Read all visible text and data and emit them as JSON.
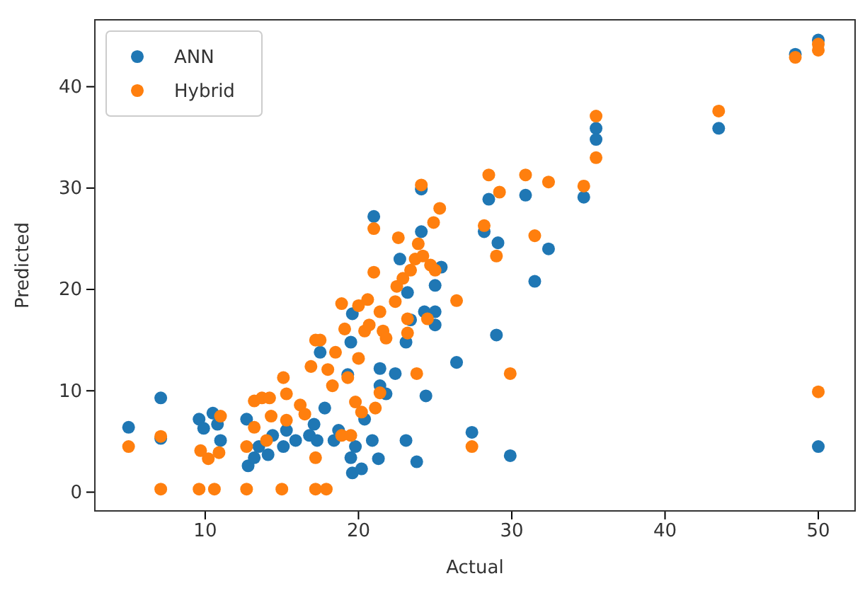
{
  "chart_data": {
    "type": "scatter",
    "xlabel": "Actual",
    "ylabel": "Predicted",
    "xlim": [
      2.8,
      52.4
    ],
    "ylim": [
      -1.85,
      46.6
    ],
    "xticks": [
      10,
      20,
      30,
      40,
      50
    ],
    "yticks": [
      0,
      10,
      20,
      30,
      40
    ],
    "grid": false,
    "legend": "top left",
    "marker": "circle",
    "series": [
      {
        "name": "ANN",
        "color": "#1f77b4",
        "x": [
          5.0,
          7.1,
          7.1,
          9.6,
          9.9,
          10.5,
          10.8,
          11.0,
          12.7,
          12.8,
          13.2,
          13.5,
          14.1,
          14.4,
          15.1,
          15.3,
          15.9,
          16.8,
          17.1,
          17.3,
          17.5,
          17.8,
          18.4,
          18.7,
          19.3,
          19.5,
          19.6,
          19.8,
          20.2,
          20.4,
          20.9,
          21.3,
          21.4,
          21.8,
          21.4,
          22.4,
          23.1,
          23.8,
          24.4,
          19.5,
          19.6,
          21.0,
          22.7,
          23.1,
          23.2,
          23.4,
          24.1,
          24.1,
          24.3,
          25.0,
          25.0,
          25.0,
          25.4,
          26.4,
          27.4,
          28.2,
          28.5,
          29.1,
          29.0,
          29.9,
          30.9,
          31.5,
          32.4,
          34.7,
          35.5,
          35.5,
          43.5,
          48.5,
          50.0,
          50.0
        ],
        "values": [
          6.4,
          9.3,
          5.3,
          7.2,
          6.3,
          7.8,
          6.7,
          5.1,
          7.2,
          2.6,
          3.4,
          4.5,
          3.7,
          5.6,
          4.5,
          6.1,
          5.1,
          5.6,
          6.7,
          5.1,
          13.8,
          8.3,
          5.1,
          6.1,
          11.6,
          3.4,
          1.9,
          4.5,
          2.3,
          7.2,
          5.1,
          3.3,
          10.5,
          9.7,
          12.2,
          11.7,
          5.1,
          3.0,
          9.5,
          14.8,
          17.6,
          27.2,
          23.0,
          14.8,
          19.7,
          17.0,
          25.7,
          29.9,
          17.8,
          20.4,
          16.5,
          17.8,
          22.2,
          12.8,
          5.9,
          25.7,
          28.9,
          24.6,
          15.5,
          3.6,
          29.3,
          20.8,
          24.0,
          29.1,
          35.9,
          34.8,
          35.9,
          43.2,
          44.6,
          4.5
        ]
      },
      {
        "name": "Hybrid",
        "color": "#ff7f0e",
        "x": [
          5.0,
          7.1,
          7.1,
          9.6,
          10.6,
          9.7,
          10.2,
          10.9,
          11.0,
          12.7,
          12.7,
          13.2,
          13.2,
          13.7,
          14.2,
          14.0,
          14.3,
          15.0,
          15.1,
          15.3,
          15.3,
          16.2,
          16.5,
          16.9,
          17.2,
          17.5,
          17.2,
          17.9,
          17.2,
          18.0,
          18.5,
          18.3,
          18.9,
          19.1,
          19.3,
          18.9,
          19.5,
          19.8,
          20.0,
          20.0,
          20.2,
          20.4,
          20.6,
          20.7,
          21.0,
          21.0,
          21.1,
          21.4,
          21.4,
          21.6,
          21.8,
          22.4,
          22.5,
          22.6,
          22.9,
          23.2,
          23.2,
          23.4,
          23.7,
          23.8,
          23.9,
          24.1,
          24.2,
          24.5,
          24.7,
          25.0,
          24.9,
          25.3,
          26.4,
          27.4,
          28.2,
          28.5,
          29.0,
          29.2,
          29.9,
          30.9,
          31.5,
          32.4,
          34.7,
          35.5,
          35.5,
          43.5,
          48.5,
          50.0,
          50.0,
          50.0
        ],
        "values": [
          4.5,
          0.3,
          5.5,
          0.3,
          0.3,
          4.1,
          3.3,
          3.9,
          7.5,
          0.3,
          4.5,
          6.4,
          9.0,
          9.3,
          9.3,
          5.1,
          7.5,
          0.3,
          11.3,
          9.7,
          7.1,
          8.6,
          7.7,
          12.4,
          15.0,
          15.0,
          0.3,
          0.3,
          3.4,
          12.1,
          13.8,
          10.5,
          18.6,
          16.1,
          11.3,
          5.6,
          5.6,
          8.9,
          18.4,
          13.2,
          7.9,
          15.9,
          19.0,
          16.5,
          21.7,
          26.0,
          8.3,
          9.8,
          17.8,
          15.9,
          15.2,
          18.8,
          20.3,
          25.1,
          21.1,
          17.1,
          15.7,
          21.9,
          23.0,
          11.7,
          24.5,
          30.3,
          23.3,
          17.1,
          22.4,
          21.9,
          26.6,
          28.0,
          18.9,
          4.5,
          26.3,
          31.3,
          23.3,
          29.6,
          11.7,
          31.3,
          25.3,
          30.6,
          30.2,
          37.1,
          33.0,
          37.6,
          42.9,
          44.2,
          43.6,
          9.9
        ]
      }
    ]
  }
}
